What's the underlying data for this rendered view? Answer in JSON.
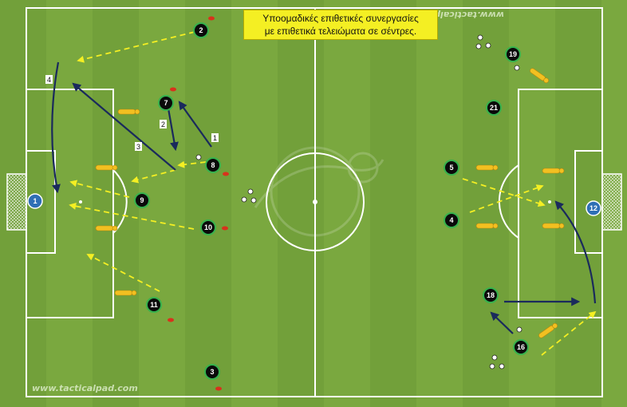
{
  "title": {
    "line1": "Υποομαδικές επιθετικές συνεργασίες",
    "line2": "με επιθετικά τελειώματα σε σέντρες."
  },
  "watermark_bottom": "www.tacticalpad.com",
  "watermark_top": "www.tacticalpad.com",
  "colors": {
    "grass_light": "#7aa83f",
    "grass_dark": "#6d9a36",
    "lines": "#ffffff",
    "player_fill": "#0a0a0a",
    "player_ring": "#37b24d",
    "goalkeeper_fill": "#2f6fb5",
    "pass_arrow": "#f4ef23",
    "run_arrow": "#1a2a5c",
    "mannequin": "#f2c021",
    "cone": "#d8321c"
  },
  "players": [
    "2",
    "7",
    "8",
    "9",
    "10",
    "11",
    "3",
    "5",
    "4",
    "19",
    "21",
    "18",
    "16"
  ],
  "goalkeepers": [
    "1",
    "12"
  ],
  "step_labels": [
    "1",
    "2",
    "3",
    "4"
  ]
}
